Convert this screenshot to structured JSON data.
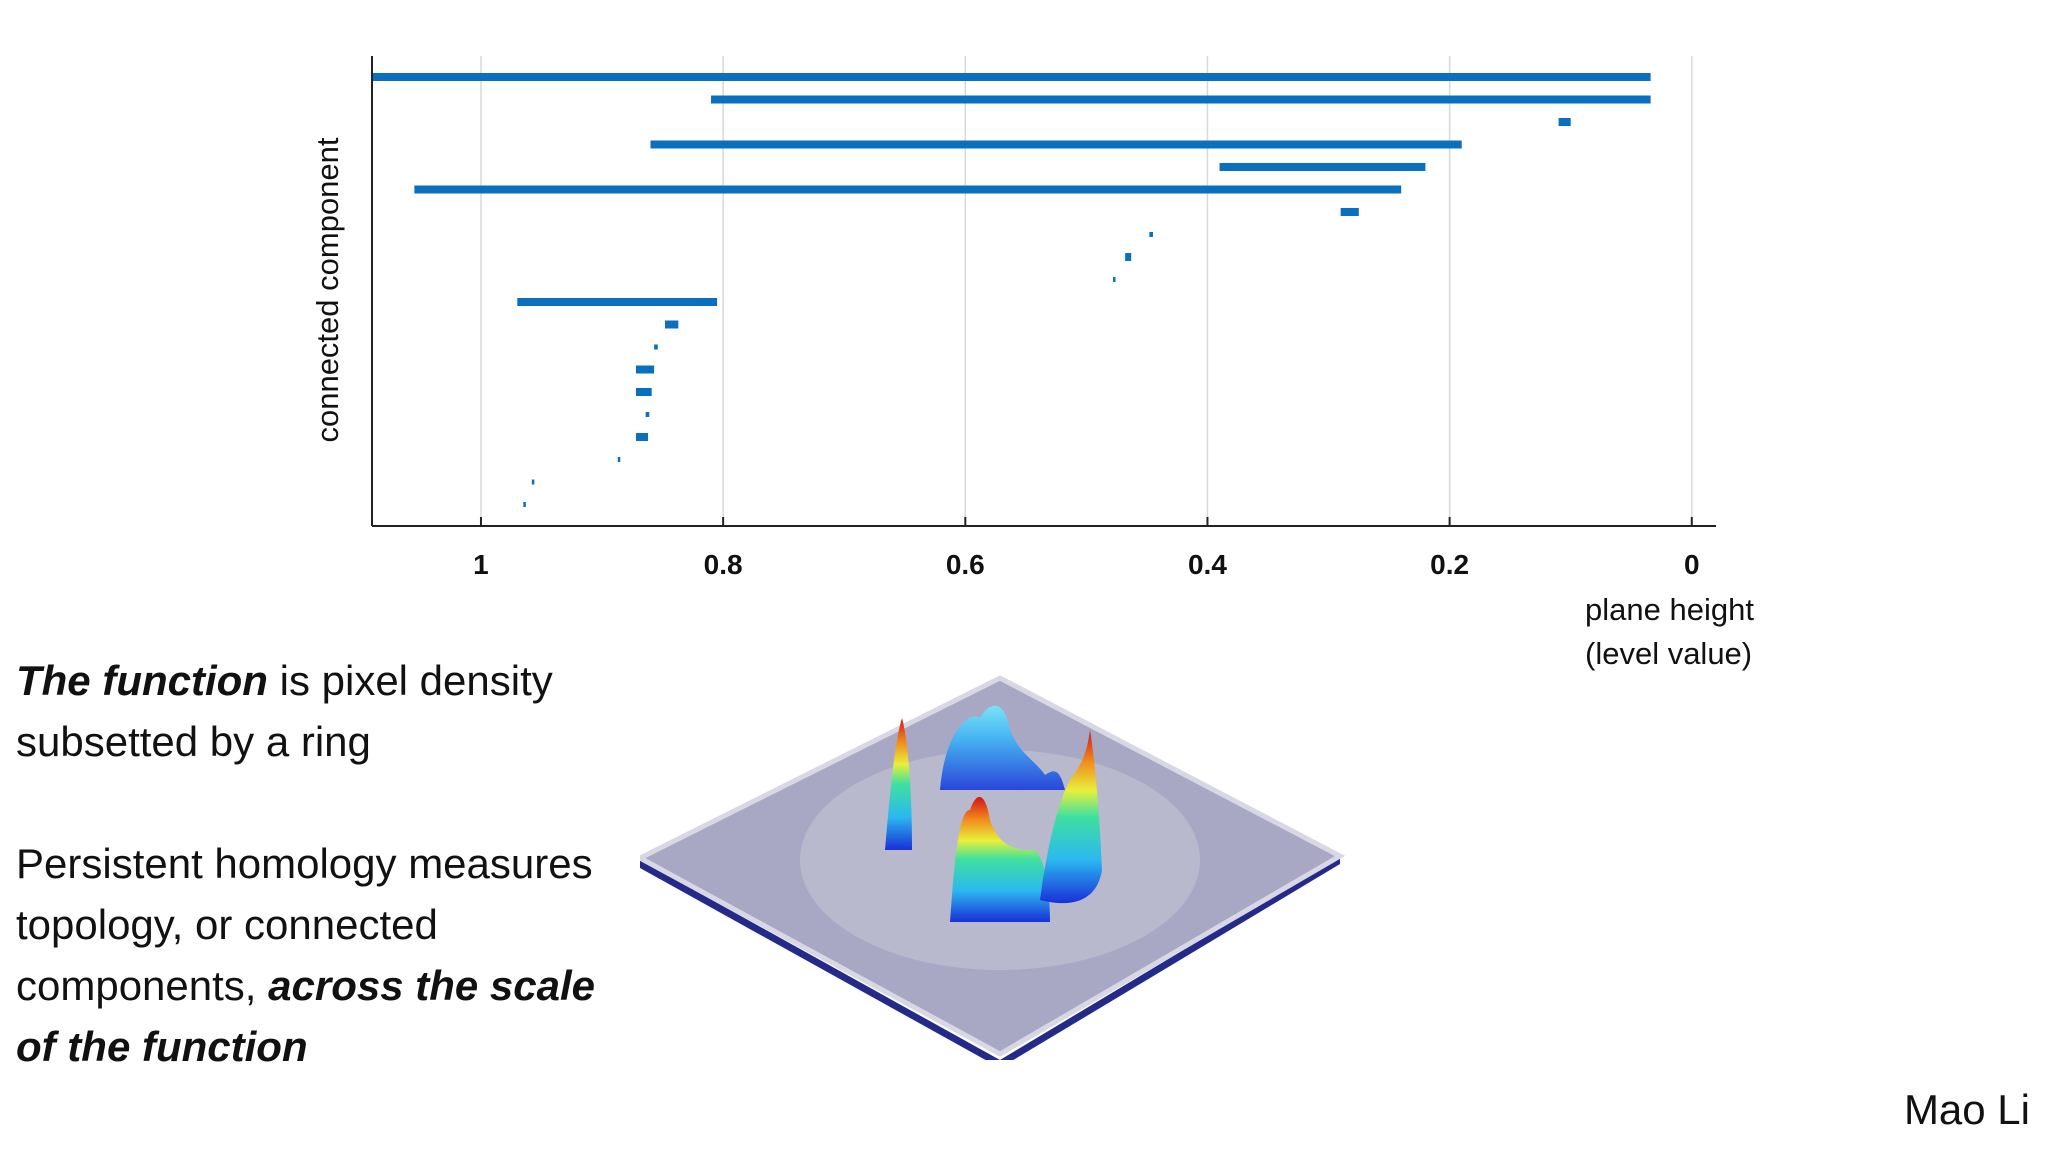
{
  "chart_data": {
    "type": "bar",
    "subtype": "persistence-barcode",
    "title": "",
    "xlabel_line1": "plane height",
    "xlabel_line2": "(level value)",
    "ylabel": "connected component",
    "xlim": [
      1.09,
      -0.02
    ],
    "x_reversed": true,
    "xticks": [
      1,
      0.8,
      0.6,
      0.4,
      0.2,
      0
    ],
    "xtick_labels": [
      "1",
      "0.8",
      "0.6",
      "0.4",
      "0.2",
      "0"
    ],
    "grid": "vertical",
    "bar_color": "#0b6fbf",
    "bars": [
      {
        "birth": 1.09,
        "death": 0.034,
        "thick": true
      },
      {
        "birth": 0.81,
        "death": 0.034,
        "thick": true
      },
      {
        "birth": 0.11,
        "death": 0.1,
        "thick": true
      },
      {
        "birth": 0.86,
        "death": 0.19,
        "thick": true
      },
      {
        "birth": 0.39,
        "death": 0.22,
        "thick": true
      },
      {
        "birth": 1.055,
        "death": 0.24,
        "thick": true
      },
      {
        "birth": 0.29,
        "death": 0.275,
        "thick": true
      },
      {
        "birth": 0.448,
        "death": 0.445,
        "thick": false
      },
      {
        "birth": 0.468,
        "death": 0.463,
        "thick": true
      },
      {
        "birth": 0.478,
        "death": 0.476,
        "thick": false
      },
      {
        "birth": 0.97,
        "death": 0.805,
        "thick": true
      },
      {
        "birth": 0.848,
        "death": 0.837,
        "thick": true
      },
      {
        "birth": 0.857,
        "death": 0.854,
        "thick": false
      },
      {
        "birth": 0.872,
        "death": 0.857,
        "thick": true
      },
      {
        "birth": 0.872,
        "death": 0.859,
        "thick": true
      },
      {
        "birth": 0.864,
        "death": 0.861,
        "thick": false
      },
      {
        "birth": 0.872,
        "death": 0.862,
        "thick": true
      },
      {
        "birth": 0.887,
        "death": 0.885,
        "thick": false
      },
      {
        "birth": 0.958,
        "death": 0.956,
        "thick": false
      },
      {
        "birth": 0.965,
        "death": 0.963,
        "thick": false
      }
    ]
  },
  "caption": {
    "p1_bold": "The function",
    "p1_rest": " is pixel density subsetted by a ring",
    "p2_text": "Persistent homology measures topology, or connected components, ",
    "p2_bold": "across the scale of the function"
  },
  "author": "Mao Li"
}
